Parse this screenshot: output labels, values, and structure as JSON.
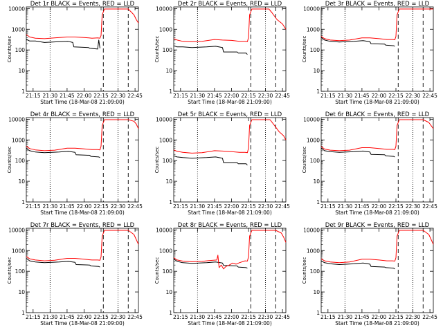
{
  "colors": {
    "events": "#000000",
    "lld": "#ff0000",
    "axis": "#000000",
    "background": "#ffffff"
  },
  "shared": {
    "ylabel": "Counts/sec",
    "xlabel": "Start Time (18-Mar-08 21:09:00)",
    "x_ticks": [
      "21:15",
      "21:30",
      "21:45",
      "22:00",
      "22:15",
      "22:30",
      "22:45"
    ],
    "y_ticks": [
      "1",
      "10",
      "100",
      "1000",
      "10000"
    ]
  },
  "chart_data": [
    {
      "type": "line",
      "title": "Det 1r BLACK = Events, RED = LLD",
      "xlabel": "Start Time (18-Mar-08 21:09:00)",
      "ylabel": "Counts/sec",
      "yscale": "log",
      "ylim": [
        1,
        12000
      ],
      "xlim": [
        "21:09",
        "22:48"
      ],
      "vlines_dotted": [
        "21:30",
        "22:30"
      ],
      "vlines_dashed": [
        "22:17",
        "22:39"
      ],
      "series": [
        {
          "name": "Events",
          "color": "#000000",
          "x": [
            "21:09",
            "21:12",
            "21:17",
            "21:25",
            "21:38",
            "21:46",
            "21:50",
            "21:51",
            "22:04",
            "22:05",
            "22:12",
            "22:13",
            "22:14"
          ],
          "y": [
            330,
            270,
            270,
            230,
            250,
            260,
            230,
            140,
            130,
            120,
            110,
            300,
            120
          ]
        },
        {
          "name": "LLD",
          "color": "#ff0000",
          "x": [
            "21:09",
            "21:12",
            "21:17",
            "21:25",
            "21:34",
            "21:45",
            "21:52",
            "22:00",
            "22:07",
            "22:12",
            "22:14",
            "22:15",
            "22:16",
            "22:18",
            "22:39",
            "22:44",
            "22:46",
            "22:48"
          ],
          "y": [
            550,
            420,
            370,
            350,
            380,
            420,
            420,
            400,
            370,
            380,
            370,
            500,
            5000,
            9500,
            9500,
            5000,
            3000,
            2000
          ]
        }
      ]
    },
    {
      "type": "line",
      "title": "Det 2r BLACK = Events, RED = LLD",
      "xlabel": "Start Time (18-Mar-08 21:09:00)",
      "ylabel": "Counts/sec",
      "yscale": "log",
      "ylim": [
        1,
        12000
      ],
      "xlim": [
        "21:09",
        "22:48"
      ],
      "vlines_dotted": [
        "21:30",
        "22:30"
      ],
      "vlines_dashed": [
        "22:17",
        "22:39"
      ],
      "series": [
        {
          "name": "Events",
          "color": "#000000",
          "x": [
            "21:09",
            "21:12",
            "21:17",
            "21:25",
            "21:38",
            "21:46",
            "21:52",
            "21:53",
            "22:05",
            "22:06",
            "22:13",
            "22:14"
          ],
          "y": [
            160,
            140,
            140,
            130,
            140,
            150,
            130,
            80,
            80,
            70,
            70,
            60
          ]
        },
        {
          "name": "LLD",
          "color": "#ff0000",
          "x": [
            "21:09",
            "21:12",
            "21:17",
            "21:25",
            "21:34",
            "21:45",
            "21:52",
            "22:00",
            "22:07",
            "22:12",
            "22:14",
            "22:15",
            "22:16",
            "22:18",
            "22:33",
            "22:36",
            "22:40",
            "22:45",
            "22:48"
          ],
          "y": [
            350,
            300,
            260,
            250,
            260,
            320,
            300,
            290,
            260,
            260,
            250,
            400,
            5000,
            9500,
            9500,
            6000,
            3000,
            1800,
            1000
          ]
        }
      ]
    },
    {
      "type": "line",
      "title": "Det 3r BLACK = Events, RED = LLD",
      "xlabel": "Start Time (18-Mar-08 21:09:00)",
      "ylabel": "Counts/sec",
      "yscale": "log",
      "ylim": [
        1,
        12000
      ],
      "xlim": [
        "21:09",
        "22:48"
      ],
      "vlines_dotted": [
        "21:30",
        "22:30"
      ],
      "vlines_dashed": [
        "22:17",
        "22:39"
      ],
      "series": [
        {
          "name": "Events",
          "color": "#000000",
          "x": [
            "21:09",
            "21:12",
            "21:17",
            "21:25",
            "21:38",
            "21:46",
            "21:52",
            "21:53",
            "22:05",
            "22:06",
            "22:13",
            "22:14"
          ],
          "y": [
            400,
            300,
            260,
            240,
            260,
            280,
            250,
            200,
            190,
            170,
            160,
            150
          ]
        },
        {
          "name": "LLD",
          "color": "#ff0000",
          "x": [
            "21:09",
            "21:12",
            "21:17",
            "21:25",
            "21:34",
            "21:45",
            "21:52",
            "22:00",
            "22:07",
            "22:12",
            "22:14",
            "22:15",
            "22:16",
            "22:18",
            "22:30",
            "22:39",
            "22:48"
          ],
          "y": [
            450,
            350,
            300,
            280,
            300,
            380,
            380,
            350,
            320,
            320,
            310,
            450,
            5000,
            9500,
            9500,
            9500,
            9500
          ]
        }
      ]
    },
    {
      "type": "line",
      "title": "Det 4r BLACK = Events, RED = LLD",
      "xlabel": "Start Time (18-Mar-08 21:09:00)",
      "ylabel": "Counts/sec",
      "yscale": "log",
      "ylim": [
        1,
        12000
      ],
      "xlim": [
        "21:09",
        "22:48"
      ],
      "vlines_dotted": [
        "21:30",
        "22:30"
      ],
      "vlines_dashed": [
        "22:17",
        "22:39"
      ],
      "series": [
        {
          "name": "Events",
          "color": "#000000",
          "x": [
            "21:09",
            "21:12",
            "21:17",
            "21:25",
            "21:38",
            "21:46",
            "21:52",
            "21:53",
            "22:05",
            "22:06",
            "22:13",
            "22:14"
          ],
          "y": [
            380,
            300,
            260,
            240,
            260,
            280,
            250,
            190,
            180,
            160,
            150,
            140
          ]
        },
        {
          "name": "LLD",
          "color": "#ff0000",
          "x": [
            "21:09",
            "21:12",
            "21:17",
            "21:25",
            "21:34",
            "21:45",
            "21:52",
            "22:00",
            "22:07",
            "22:12",
            "22:14",
            "22:15",
            "22:16",
            "22:18",
            "22:39",
            "22:44",
            "22:46",
            "22:48"
          ],
          "y": [
            500,
            380,
            330,
            300,
            320,
            400,
            400,
            370,
            340,
            340,
            330,
            500,
            5000,
            9500,
            9500,
            8000,
            6000,
            3500
          ]
        }
      ]
    },
    {
      "type": "line",
      "title": "Det 5r BLACK = Events, RED = LLD",
      "xlabel": "Start Time (18-Mar-08 21:09:00)",
      "ylabel": "Counts/sec",
      "yscale": "log",
      "ylim": [
        1,
        12000
      ],
      "xlim": [
        "21:09",
        "22:48"
      ],
      "vlines_dotted": [
        "21:30",
        "22:30"
      ],
      "vlines_dashed": [
        "22:17",
        "22:39"
      ],
      "series": [
        {
          "name": "Events",
          "color": "#000000",
          "x": [
            "21:09",
            "21:12",
            "21:17",
            "21:25",
            "21:38",
            "21:46",
            "21:52",
            "21:53",
            "22:05",
            "22:06",
            "22:13",
            "22:14"
          ],
          "y": [
            170,
            150,
            140,
            130,
            140,
            150,
            130,
            80,
            80,
            70,
            70,
            60
          ]
        },
        {
          "name": "LLD",
          "color": "#ff0000",
          "x": [
            "21:09",
            "21:12",
            "21:17",
            "21:25",
            "21:34",
            "21:45",
            "21:52",
            "22:00",
            "22:07",
            "22:12",
            "22:14",
            "22:15",
            "22:16",
            "22:18",
            "22:34",
            "22:38",
            "22:42",
            "22:46",
            "22:48"
          ],
          "y": [
            330,
            280,
            250,
            230,
            240,
            300,
            290,
            270,
            250,
            250,
            240,
            400,
            5000,
            9500,
            9500,
            5000,
            2500,
            1600,
            1000
          ]
        }
      ]
    },
    {
      "type": "line",
      "title": "Det 6r BLACK = Events, RED = LLD",
      "xlabel": "Start Time (18-Mar-08 21:09:00)",
      "ylabel": "Counts/sec",
      "yscale": "log",
      "ylim": [
        1,
        12000
      ],
      "xlim": [
        "21:09",
        "22:48"
      ],
      "vlines_dotted": [
        "21:30",
        "22:30"
      ],
      "vlines_dashed": [
        "22:17",
        "22:39"
      ],
      "series": [
        {
          "name": "Events",
          "color": "#000000",
          "x": [
            "21:09",
            "21:12",
            "21:17",
            "21:25",
            "21:38",
            "21:46",
            "21:52",
            "21:53",
            "22:05",
            "22:06",
            "22:13",
            "22:14"
          ],
          "y": [
            400,
            300,
            270,
            250,
            270,
            290,
            260,
            200,
            190,
            170,
            160,
            150
          ]
        },
        {
          "name": "LLD",
          "color": "#ff0000",
          "x": [
            "21:09",
            "21:12",
            "21:17",
            "21:25",
            "21:34",
            "21:45",
            "21:52",
            "22:00",
            "22:07",
            "22:12",
            "22:14",
            "22:15",
            "22:16",
            "22:18",
            "22:39",
            "22:44",
            "22:46",
            "22:48"
          ],
          "y": [
            480,
            360,
            320,
            300,
            320,
            420,
            420,
            380,
            350,
            350,
            340,
            500,
            5000,
            9500,
            9500,
            7000,
            5000,
            3500
          ]
        }
      ]
    },
    {
      "type": "line",
      "title": "Det 7r BLACK = Events, RED = LLD",
      "xlabel": "Start Time (18-Mar-08 21:09:00)",
      "ylabel": "Counts/sec",
      "yscale": "log",
      "ylim": [
        1,
        12000
      ],
      "xlim": [
        "21:09",
        "22:48"
      ],
      "vlines_dotted": [
        "21:30",
        "22:30"
      ],
      "vlines_dashed": [
        "22:17",
        "22:39"
      ],
      "series": [
        {
          "name": "Events",
          "color": "#000000",
          "x": [
            "21:09",
            "21:12",
            "21:17",
            "21:25",
            "21:38",
            "21:46",
            "21:52",
            "21:53",
            "22:05",
            "22:06",
            "22:13",
            "22:14"
          ],
          "y": [
            420,
            320,
            280,
            260,
            280,
            300,
            270,
            210,
            200,
            180,
            170,
            160
          ]
        },
        {
          "name": "LLD",
          "color": "#ff0000",
          "x": [
            "21:09",
            "21:12",
            "21:17",
            "21:25",
            "21:34",
            "21:45",
            "21:52",
            "22:00",
            "22:07",
            "22:12",
            "22:14",
            "22:15",
            "22:16",
            "22:18",
            "22:39",
            "22:44",
            "22:46",
            "22:48"
          ],
          "y": [
            520,
            400,
            350,
            320,
            340,
            420,
            420,
            380,
            350,
            350,
            340,
            500,
            5000,
            9500,
            9500,
            6000,
            3500,
            2000
          ]
        }
      ]
    },
    {
      "type": "line",
      "title": "Det 8r BLACK = Events, RED = LLD",
      "xlabel": "Start Time (18-Mar-08 21:09:00)",
      "ylabel": "Counts/sec",
      "yscale": "log",
      "ylim": [
        1,
        12000
      ],
      "xlim": [
        "21:09",
        "22:48"
      ],
      "vlines_dotted": [
        "21:30",
        "22:30"
      ],
      "vlines_dashed": [
        "22:17",
        "22:39"
      ],
      "series": [
        {
          "name": "Events",
          "color": "#000000",
          "x": [
            "21:09",
            "21:12",
            "21:17",
            "21:25",
            "21:38",
            "21:46",
            "21:52",
            "21:53",
            "22:05",
            "22:06",
            "22:13",
            "22:14"
          ],
          "y": [
            400,
            300,
            260,
            240,
            260,
            280,
            250,
            190,
            180,
            160,
            150,
            140
          ]
        },
        {
          "name": "LLD",
          "color": "#ff0000",
          "x": [
            "21:09",
            "21:12",
            "21:17",
            "21:25",
            "21:34",
            "21:40",
            "21:47",
            "21:48",
            "21:49",
            "21:51",
            "21:53",
            "21:55",
            "21:58",
            "22:01",
            "22:04",
            "22:07",
            "22:12",
            "22:14",
            "22:15",
            "22:16",
            "22:18",
            "22:39",
            "22:44",
            "22:46",
            "22:48"
          ],
          "y": [
            450,
            350,
            310,
            290,
            300,
            330,
            350,
            600,
            150,
            200,
            130,
            170,
            200,
            250,
            220,
            260,
            320,
            310,
            500,
            5000,
            9500,
            9500,
            7000,
            4500,
            2500
          ]
        }
      ]
    },
    {
      "type": "line",
      "title": "Det 9r BLACK = Events, RED = LLD",
      "xlabel": "Start Time (18-Mar-08 21:09:00)",
      "ylabel": "Counts/sec",
      "yscale": "log",
      "ylim": [
        1,
        12000
      ],
      "xlim": [
        "21:09",
        "22:48"
      ],
      "vlines_dotted": [
        "21:30",
        "22:30"
      ],
      "vlines_dashed": [
        "22:17",
        "22:39"
      ],
      "series": [
        {
          "name": "Events",
          "color": "#000000",
          "x": [
            "21:09",
            "21:12",
            "21:17",
            "21:25",
            "21:38",
            "21:46",
            "21:52",
            "21:53",
            "22:05",
            "22:06",
            "22:13",
            "22:14"
          ],
          "y": [
            320,
            260,
            230,
            210,
            230,
            250,
            220,
            170,
            160,
            150,
            140,
            130
          ]
        },
        {
          "name": "LLD",
          "color": "#ff0000",
          "x": [
            "21:09",
            "21:12",
            "21:17",
            "21:25",
            "21:34",
            "21:45",
            "21:52",
            "22:00",
            "22:07",
            "22:12",
            "22:14",
            "22:15",
            "22:16",
            "22:18",
            "22:39",
            "22:44",
            "22:46",
            "22:48"
          ],
          "y": [
            400,
            320,
            280,
            260,
            280,
            380,
            380,
            350,
            320,
            320,
            310,
            450,
            5000,
            9500,
            9500,
            6000,
            3500,
            2000
          ]
        }
      ]
    }
  ]
}
